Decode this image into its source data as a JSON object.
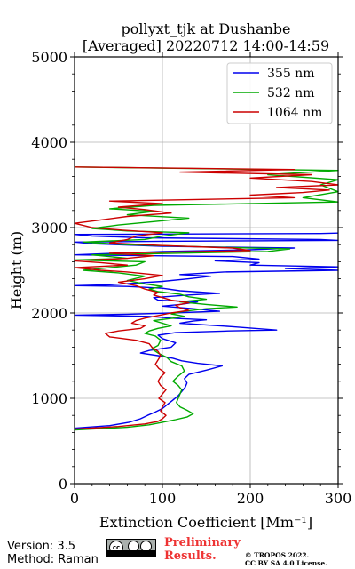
{
  "chart_data": {
    "type": "line",
    "title": [
      "pollyxt_tjk at Dushanbe",
      "[Averaged] 20220712 14:00-14:59"
    ],
    "xlabel": "Extinction Coefficient [Mm⁻¹]",
    "ylabel": "Height (m)",
    "xlim": [
      0,
      300
    ],
    "ylim": [
      0,
      5000
    ],
    "xticks": [
      0,
      100,
      200,
      300
    ],
    "xtick_labels": [
      "0",
      "100",
      "200",
      "300"
    ],
    "yticks": [
      0,
      1000,
      2000,
      3000,
      4000,
      5000
    ],
    "ytick_labels": [
      "0",
      "1000",
      "2000",
      "3000",
      "4000",
      "5000"
    ],
    "grid": true,
    "legend_position": "top-right",
    "series": [
      {
        "name": "355 nm",
        "color": "#0000ee",
        "points": [
          [
            0,
            650
          ],
          [
            40,
            680
          ],
          [
            62,
            720
          ],
          [
            75,
            760
          ],
          [
            83,
            800
          ],
          [
            92,
            840
          ],
          [
            100,
            880
          ],
          [
            106,
            930
          ],
          [
            112,
            980
          ],
          [
            118,
            1030
          ],
          [
            122,
            1080
          ],
          [
            126,
            1130
          ],
          [
            128,
            1180
          ],
          [
            125,
            1230
          ],
          [
            130,
            1280
          ],
          [
            150,
            1330
          ],
          [
            168,
            1380
          ],
          [
            140,
            1410
          ],
          [
            122,
            1440
          ],
          [
            112,
            1470
          ],
          [
            95,
            1500
          ],
          [
            75,
            1530
          ],
          [
            85,
            1560
          ],
          [
            110,
            1600
          ],
          [
            115,
            1650
          ],
          [
            100,
            1700
          ],
          [
            95,
            1740
          ],
          [
            115,
            1770
          ],
          [
            175,
            1790
          ],
          [
            230,
            1800
          ],
          [
            180,
            1840
          ],
          [
            120,
            1880
          ],
          [
            135,
            1905
          ],
          [
            150,
            1920
          ],
          [
            110,
            1940
          ],
          [
            85,
            1960
          ],
          [
            30,
            1970
          ],
          [
            0,
            1975
          ],
          [
            60,
            1985
          ],
          [
            110,
            2000
          ],
          [
            165,
            2020
          ],
          [
            135,
            2050
          ],
          [
            100,
            2080
          ],
          [
            120,
            2100
          ],
          [
            140,
            2130
          ],
          [
            95,
            2150
          ],
          [
            90,
            2180
          ],
          [
            130,
            2210
          ],
          [
            165,
            2230
          ],
          [
            120,
            2260
          ],
          [
            100,
            2290
          ],
          [
            60,
            2310
          ],
          [
            0,
            2320
          ],
          [
            40,
            2330
          ],
          [
            70,
            2350
          ],
          [
            100,
            2370
          ],
          [
            130,
            2400
          ],
          [
            155,
            2430
          ],
          [
            120,
            2450
          ],
          [
            170,
            2480
          ],
          [
            300,
            2500
          ],
          [
            240,
            2520
          ],
          [
            300,
            2540
          ],
          [
            200,
            2560
          ],
          [
            210,
            2590
          ],
          [
            160,
            2610
          ],
          [
            210,
            2630
          ],
          [
            180,
            2660
          ],
          [
            0,
            2680
          ],
          [
            50,
            2700
          ],
          [
            100,
            2720
          ],
          [
            200,
            2740
          ],
          [
            250,
            2760
          ],
          [
            100,
            2780
          ],
          [
            20,
            2810
          ],
          [
            0,
            2830
          ],
          [
            100,
            2840
          ],
          [
            300,
            2850
          ],
          [
            280,
            2860
          ],
          [
            80,
            2880
          ],
          [
            20,
            2900
          ],
          [
            0,
            2920
          ],
          [
            280,
            2930
          ],
          [
            300,
            2935
          ]
        ]
      },
      {
        "name": "532 nm",
        "color": "#00aa00",
        "points": [
          [
            0,
            630
          ],
          [
            60,
            660
          ],
          [
            85,
            690
          ],
          [
            100,
            720
          ],
          [
            115,
            750
          ],
          [
            128,
            780
          ],
          [
            135,
            820
          ],
          [
            128,
            860
          ],
          [
            120,
            900
          ],
          [
            116,
            950
          ],
          [
            118,
            1000
          ],
          [
            120,
            1050
          ],
          [
            122,
            1100
          ],
          [
            118,
            1150
          ],
          [
            112,
            1200
          ],
          [
            118,
            1260
          ],
          [
            125,
            1320
          ],
          [
            122,
            1380
          ],
          [
            110,
            1430
          ],
          [
            105,
            1480
          ],
          [
            95,
            1530
          ],
          [
            88,
            1580
          ],
          [
            95,
            1620
          ],
          [
            98,
            1680
          ],
          [
            92,
            1730
          ],
          [
            80,
            1760
          ],
          [
            85,
            1790
          ],
          [
            95,
            1820
          ],
          [
            110,
            1850
          ],
          [
            100,
            1880
          ],
          [
            90,
            1910
          ],
          [
            112,
            1940
          ],
          [
            125,
            1960
          ],
          [
            110,
            1990
          ],
          [
            125,
            2020
          ],
          [
            150,
            2050
          ],
          [
            185,
            2070
          ],
          [
            150,
            2100
          ],
          [
            120,
            2130
          ],
          [
            150,
            2160
          ],
          [
            130,
            2190
          ],
          [
            120,
            2220
          ],
          [
            95,
            2250
          ],
          [
            85,
            2280
          ],
          [
            100,
            2310
          ],
          [
            80,
            2340
          ],
          [
            60,
            2380
          ],
          [
            80,
            2430
          ],
          [
            50,
            2470
          ],
          [
            10,
            2500
          ],
          [
            40,
            2530
          ],
          [
            70,
            2560
          ],
          [
            80,
            2600
          ],
          [
            0,
            2620
          ],
          [
            60,
            2640
          ],
          [
            20,
            2680
          ],
          [
            120,
            2700
          ],
          [
            220,
            2720
          ],
          [
            245,
            2750
          ],
          [
            160,
            2770
          ],
          [
            60,
            2800
          ],
          [
            10,
            2830
          ],
          [
            80,
            2860
          ],
          [
            100,
            2900
          ],
          [
            130,
            2940
          ],
          [
            60,
            2960
          ],
          [
            20,
            2990
          ],
          [
            50,
            3030
          ],
          [
            90,
            3070
          ],
          [
            130,
            3110
          ],
          [
            60,
            3150
          ],
          [
            90,
            3190
          ],
          [
            40,
            3220
          ],
          [
            90,
            3260
          ],
          [
            300,
            3300
          ],
          [
            260,
            3350
          ],
          [
            300,
            3420
          ],
          [
            280,
            3500
          ],
          [
            300,
            3560
          ],
          [
            220,
            3620
          ],
          [
            300,
            3670
          ],
          [
            0,
            3710
          ]
        ]
      },
      {
        "name": "1064 nm",
        "color": "#cc0000",
        "points": [
          [
            0,
            640
          ],
          [
            50,
            670
          ],
          [
            80,
            700
          ],
          [
            95,
            730
          ],
          [
            100,
            760
          ],
          [
            104,
            800
          ],
          [
            98,
            850
          ],
          [
            100,
            900
          ],
          [
            103,
            950
          ],
          [
            96,
            1000
          ],
          [
            100,
            1050
          ],
          [
            104,
            1100
          ],
          [
            98,
            1150
          ],
          [
            95,
            1200
          ],
          [
            98,
            1250
          ],
          [
            103,
            1300
          ],
          [
            96,
            1350
          ],
          [
            92,
            1400
          ],
          [
            95,
            1450
          ],
          [
            98,
            1500
          ],
          [
            95,
            1550
          ],
          [
            88,
            1600
          ],
          [
            85,
            1640
          ],
          [
            70,
            1680
          ],
          [
            40,
            1720
          ],
          [
            35,
            1760
          ],
          [
            50,
            1790
          ],
          [
            75,
            1820
          ],
          [
            80,
            1850
          ],
          [
            65,
            1880
          ],
          [
            70,
            1910
          ],
          [
            80,
            1940
          ],
          [
            95,
            1970
          ],
          [
            110,
            2000
          ],
          [
            130,
            2030
          ],
          [
            120,
            2060
          ],
          [
            115,
            2090
          ],
          [
            130,
            2120
          ],
          [
            110,
            2150
          ],
          [
            100,
            2180
          ],
          [
            90,
            2210
          ],
          [
            95,
            2240
          ],
          [
            80,
            2280
          ],
          [
            70,
            2320
          ],
          [
            50,
            2360
          ],
          [
            80,
            2400
          ],
          [
            100,
            2440
          ],
          [
            60,
            2480
          ],
          [
            30,
            2500
          ],
          [
            0,
            2530
          ],
          [
            60,
            2560
          ],
          [
            30,
            2590
          ],
          [
            0,
            2610
          ],
          [
            60,
            2640
          ],
          [
            90,
            2670
          ],
          [
            40,
            2700
          ],
          [
            200,
            2730
          ],
          [
            180,
            2760
          ],
          [
            100,
            2790
          ],
          [
            40,
            2820
          ],
          [
            60,
            2860
          ],
          [
            70,
            2900
          ],
          [
            100,
            2940
          ],
          [
            55,
            2970
          ],
          [
            20,
            3000
          ],
          [
            0,
            3050
          ],
          [
            30,
            3090
          ],
          [
            60,
            3130
          ],
          [
            110,
            3170
          ],
          [
            80,
            3210
          ],
          [
            50,
            3240
          ],
          [
            100,
            3280
          ],
          [
            40,
            3310
          ],
          [
            250,
            3350
          ],
          [
            200,
            3380
          ],
          [
            260,
            3410
          ],
          [
            290,
            3440
          ],
          [
            230,
            3470
          ],
          [
            300,
            3500
          ],
          [
            270,
            3540
          ],
          [
            200,
            3580
          ],
          [
            270,
            3620
          ],
          [
            120,
            3650
          ],
          [
            250,
            3680
          ],
          [
            0,
            3710
          ]
        ]
      }
    ]
  },
  "footer": {
    "version": "Version: 3.5",
    "method": "Method: Raman",
    "license_badge": [
      "cc",
      "by",
      "sa"
    ],
    "preliminary": [
      "Preliminary",
      "Results."
    ],
    "copyright": [
      "© TROPOS 2022.",
      "CC BY SA 4.0 License."
    ]
  }
}
